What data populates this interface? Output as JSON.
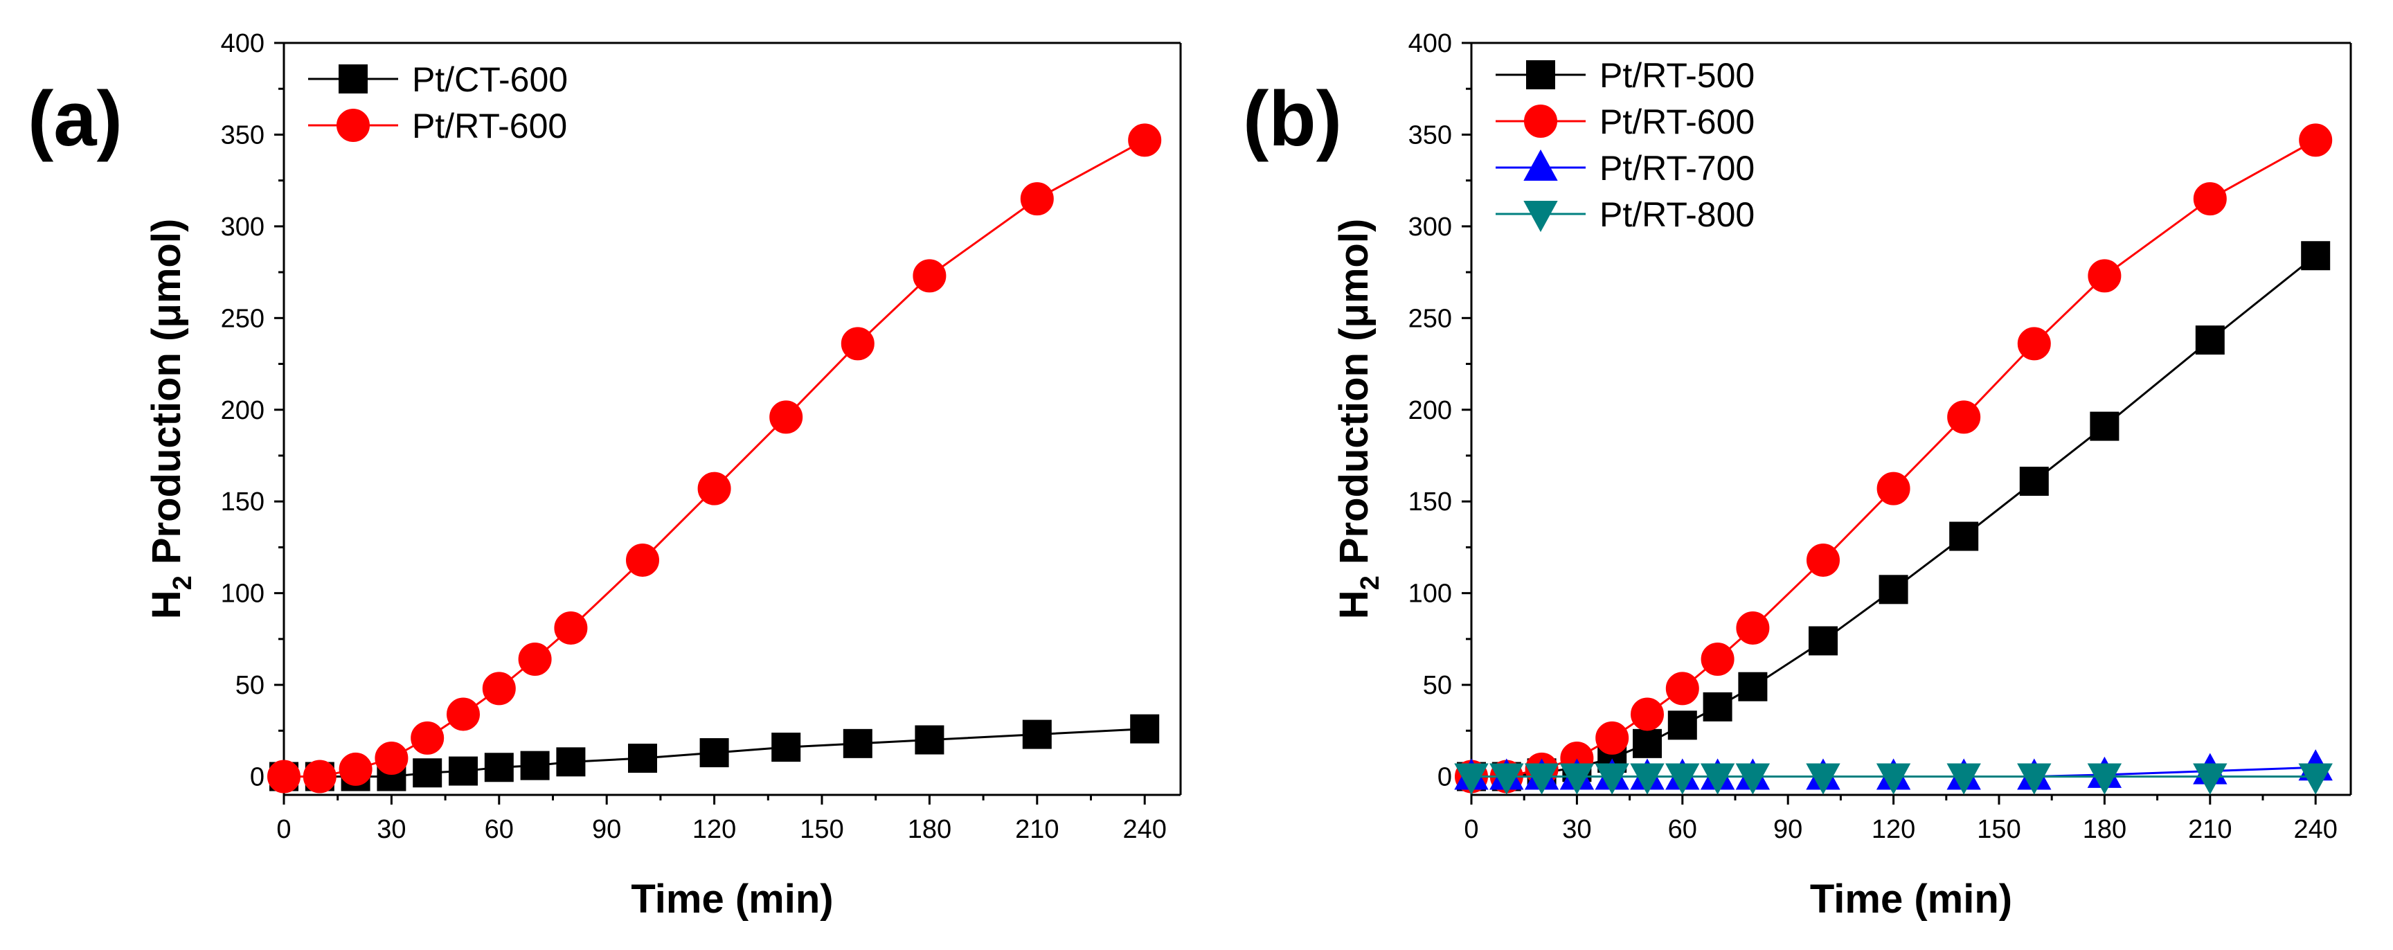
{
  "colors": {
    "black": "#000000",
    "red": "#ff0000",
    "blue": "#0000ff",
    "teal": "#008080"
  },
  "chart_data": [
    {
      "type": "line",
      "panel_label": "(a)",
      "xlabel": "Time (min)",
      "ylabel": "H2 Production (μmol)",
      "ylabel_parts": {
        "h": "H",
        "sub": "2",
        "rest": " Production (μmol)"
      },
      "xlim": [
        0,
        250
      ],
      "ylim": [
        -10,
        400
      ],
      "xticks": [
        0,
        30,
        60,
        90,
        120,
        150,
        180,
        210,
        240
      ],
      "xtick_labels": [
        "0",
        "30",
        "60",
        "90",
        "120",
        "150",
        "180",
        "210",
        "240"
      ],
      "yticks": [
        0,
        50,
        100,
        150,
        200,
        250,
        300,
        350,
        400
      ],
      "ytick_labels": [
        "0",
        "50",
        "100",
        "150",
        "200",
        "250",
        "300",
        "350",
        "400"
      ],
      "legend_position": "top-left",
      "series": [
        {
          "name": "Pt/CT-600",
          "color": "#000000",
          "marker": "square",
          "x": [
            0,
            10,
            20,
            30,
            40,
            50,
            60,
            70,
            80,
            100,
            120,
            140,
            160,
            180,
            210,
            240
          ],
          "y": [
            0,
            0,
            0,
            0,
            2,
            3,
            5,
            6,
            8,
            10,
            13,
            16,
            18,
            20,
            23,
            26
          ]
        },
        {
          "name": "Pt/RT-600",
          "color": "#ff0000",
          "marker": "circle",
          "x": [
            0,
            10,
            20,
            30,
            40,
            50,
            60,
            70,
            80,
            100,
            120,
            140,
            160,
            180,
            210,
            240
          ],
          "y": [
            0,
            0,
            4,
            10,
            21,
            34,
            48,
            64,
            81,
            118,
            157,
            196,
            236,
            273,
            315,
            347
          ]
        }
      ]
    },
    {
      "type": "line",
      "panel_label": "(b)",
      "xlabel": "Time (min)",
      "ylabel": "H2 Production (μmol)",
      "ylabel_parts": {
        "h": "H",
        "sub": "2",
        "rest": " Production (μmol)"
      },
      "xlim": [
        0,
        250
      ],
      "ylim": [
        -10,
        400
      ],
      "xticks": [
        0,
        30,
        60,
        90,
        120,
        150,
        180,
        210,
        240
      ],
      "xtick_labels": [
        "0",
        "30",
        "60",
        "90",
        "120",
        "150",
        "180",
        "210",
        "240"
      ],
      "yticks": [
        0,
        50,
        100,
        150,
        200,
        250,
        300,
        350,
        400
      ],
      "ytick_labels": [
        "0",
        "50",
        "100",
        "150",
        "200",
        "250",
        "300",
        "350",
        "400"
      ],
      "legend_position": "top-left",
      "series": [
        {
          "name": "Pt/RT-500",
          "color": "#000000",
          "marker": "square",
          "x": [
            0,
            10,
            20,
            30,
            40,
            50,
            60,
            70,
            80,
            100,
            120,
            140,
            160,
            180,
            210,
            240
          ],
          "y": [
            0,
            0,
            2,
            5,
            10,
            18,
            28,
            38,
            49,
            74,
            102,
            131,
            161,
            191,
            238,
            284
          ]
        },
        {
          "name": "Pt/RT-600",
          "color": "#ff0000",
          "marker": "circle",
          "x": [
            0,
            10,
            20,
            30,
            40,
            50,
            60,
            70,
            80,
            100,
            120,
            140,
            160,
            180,
            210,
            240
          ],
          "y": [
            0,
            0,
            4,
            10,
            21,
            34,
            48,
            64,
            81,
            118,
            157,
            196,
            236,
            273,
            315,
            347
          ]
        },
        {
          "name": "Pt/RT-700",
          "color": "#0000ff",
          "marker": "triangle-up",
          "x": [
            0,
            10,
            20,
            30,
            40,
            50,
            60,
            70,
            80,
            100,
            120,
            140,
            160,
            180,
            210,
            240
          ],
          "y": [
            0,
            0,
            0,
            0,
            0,
            0,
            0,
            0,
            0,
            0,
            0,
            0,
            0,
            1,
            3,
            5
          ]
        },
        {
          "name": "Pt/RT-800",
          "color": "#008080",
          "marker": "triangle-down",
          "x": [
            0,
            10,
            20,
            30,
            40,
            50,
            60,
            70,
            80,
            100,
            120,
            140,
            160,
            180,
            210,
            240
          ],
          "y": [
            0,
            0,
            0,
            0,
            0,
            0,
            0,
            0,
            0,
            0,
            0,
            0,
            0,
            0,
            0,
            0
          ]
        }
      ]
    }
  ]
}
